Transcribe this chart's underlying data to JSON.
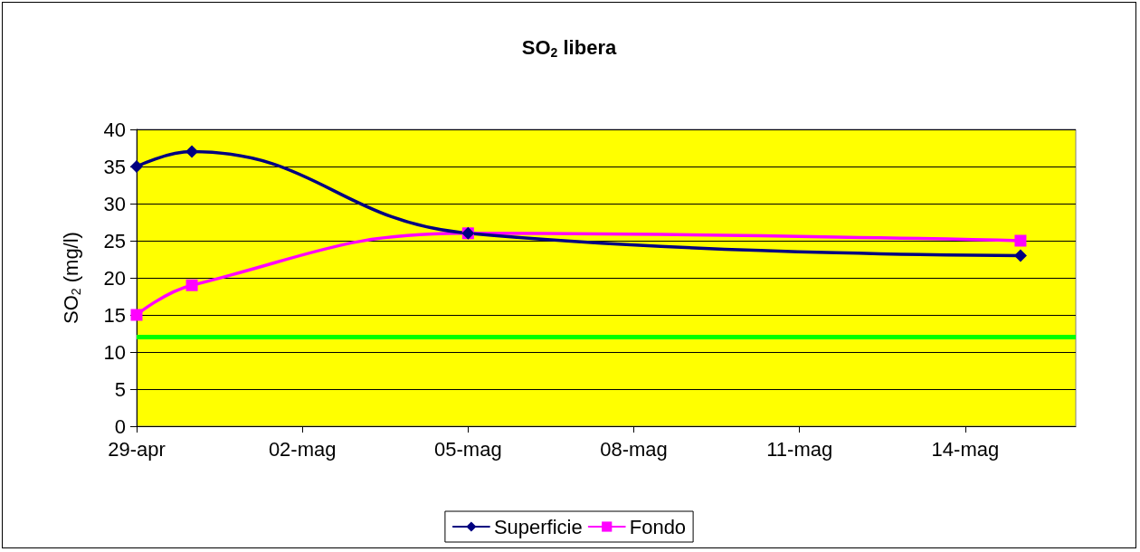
{
  "chart_data": {
    "type": "line",
    "title": "SO$_{2}$ libera",
    "ylabel": "SO$_{2}$ (mg/l)",
    "series": [
      {
        "name": "Superficie",
        "color": "#000080",
        "marker": "diamond",
        "x": [
          "--04-29",
          "--04-30",
          "--05-05",
          "--05-15"
        ],
        "values": [
          35,
          37,
          26,
          23
        ]
      },
      {
        "name": "Fondo",
        "color": "#ff00ff",
        "marker": "square",
        "x": [
          "--04-29",
          "--04-30",
          "--05-05",
          "--05-15"
        ],
        "values": [
          15,
          19,
          26,
          25
        ]
      }
    ],
    "xlim": [
      "--04-29",
      "--05-16"
    ],
    "xticks": [
      {
        "value": "--04-29",
        "label": "29-apr"
      },
      {
        "value": "--05-02",
        "label": "02-mag"
      },
      {
        "value": "--05-05",
        "label": "05-mag"
      },
      {
        "value": "--05-08",
        "label": "08-mag"
      },
      {
        "value": "--05-11",
        "label": "11-mag"
      },
      {
        "value": "--05-14",
        "label": "14-mag"
      }
    ],
    "ylim": [
      0,
      40
    ],
    "yticks": [
      0,
      5,
      10,
      15,
      20,
      25,
      30,
      35,
      40
    ],
    "ref_lines": [
      {
        "axis": "y",
        "value": 12,
        "color": "#00ff00"
      }
    ],
    "grid": "y",
    "legend": "bottom",
    "line_style": "solid"
  }
}
